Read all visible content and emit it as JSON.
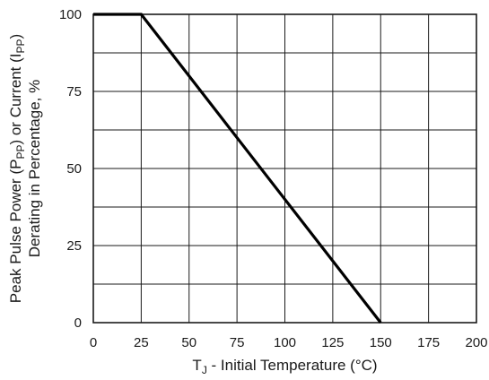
{
  "chart_data": {
    "type": "line",
    "x_label_parts": [
      "T",
      "J",
      " - Initial Temperature (°C)"
    ],
    "y_label_line1_parts": [
      "Peak Pulse Power (P",
      "PP",
      ") or Current (I",
      "PP",
      ")"
    ],
    "y_label_line2": "Derating in Percentage, %",
    "xlim": [
      0,
      200
    ],
    "ylim": [
      0,
      100
    ],
    "x_ticks": [
      "0",
      "25",
      "50",
      "75",
      "100",
      "125",
      "150",
      "175",
      "200"
    ],
    "y_ticks": [
      "0",
      "25",
      "50",
      "75",
      "100"
    ],
    "grid": true,
    "series": [
      {
        "x": [
          0,
          25,
          150
        ],
        "y": [
          100,
          100,
          0
        ]
      }
    ]
  }
}
